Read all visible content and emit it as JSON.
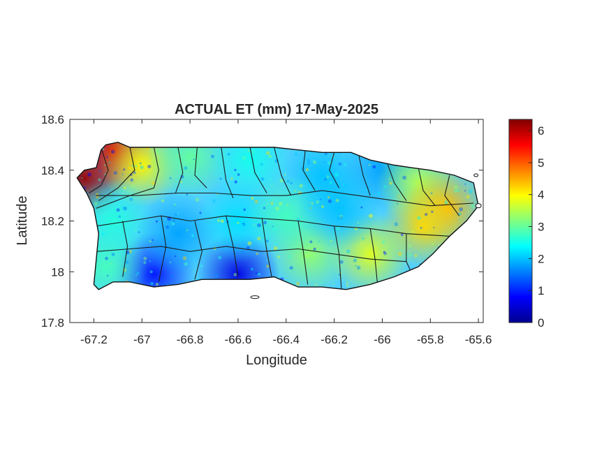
{
  "title": "ACTUAL ET (mm) 17-May-2025",
  "axes": {
    "xlabel": "Longitude",
    "ylabel": "Latitude",
    "xlim": [
      -67.3,
      -65.58
    ],
    "ylim": [
      17.8,
      18.6
    ],
    "x_ticks": [
      -67.2,
      -67.0,
      -66.8,
      -66.6,
      -66.4,
      -66.2,
      -66.0,
      -65.8,
      -65.6
    ],
    "x_tick_labels": [
      "-67.2",
      "-67",
      "-66.8",
      "-66.6",
      "-66.4",
      "-66.2",
      "-66",
      "-65.8",
      "-65.6"
    ],
    "y_ticks": [
      17.8,
      18.0,
      18.2,
      18.4,
      18.6
    ],
    "y_tick_labels": [
      "17.8",
      "18",
      "18.2",
      "18.4",
      "18.6"
    ]
  },
  "colorbar": {
    "colormap": "jet",
    "range": [
      0,
      6.35
    ],
    "ticks": [
      0,
      1,
      2,
      3,
      4,
      5,
      6
    ],
    "tick_labels": [
      "0",
      "1",
      "2",
      "3",
      "4",
      "5",
      "6"
    ],
    "colors": [
      "#00008f",
      "#0000ff",
      "#0080ff",
      "#00ffff",
      "#80ff80",
      "#ffff00",
      "#ff8000",
      "#ff0000",
      "#800000"
    ]
  },
  "chart_data": {
    "type": "heatmap",
    "title": "ACTUAL ET (mm) 17-May-2025",
    "xlabel": "Longitude",
    "ylabel": "Latitude",
    "xlim": [
      -67.3,
      -65.58
    ],
    "ylim": [
      17.8,
      18.6
    ],
    "value_range": [
      0,
      6.35
    ],
    "island_outline": [
      [
        -67.27,
        18.37
      ],
      [
        -67.24,
        18.4
      ],
      [
        -67.19,
        18.41
      ],
      [
        -67.17,
        18.48
      ],
      [
        -67.15,
        18.5
      ],
      [
        -67.1,
        18.51
      ],
      [
        -67.05,
        18.49
      ],
      [
        -66.95,
        18.49
      ],
      [
        -66.85,
        18.49
      ],
      [
        -66.7,
        18.49
      ],
      [
        -66.6,
        18.49
      ],
      [
        -66.45,
        18.49
      ],
      [
        -66.35,
        18.48
      ],
      [
        -66.25,
        18.47
      ],
      [
        -66.13,
        18.47
      ],
      [
        -66.05,
        18.44
      ],
      [
        -65.95,
        18.42
      ],
      [
        -65.88,
        18.41
      ],
      [
        -65.8,
        18.4
      ],
      [
        -65.7,
        18.38
      ],
      [
        -65.62,
        18.35
      ],
      [
        -65.6,
        18.26
      ],
      [
        -65.65,
        18.2
      ],
      [
        -65.72,
        18.14
      ],
      [
        -65.79,
        18.07
      ],
      [
        -65.85,
        18.02
      ],
      [
        -65.95,
        17.98
      ],
      [
        -66.05,
        17.95
      ],
      [
        -66.15,
        17.93
      ],
      [
        -66.25,
        17.94
      ],
      [
        -66.35,
        17.94
      ],
      [
        -66.45,
        17.98
      ],
      [
        -66.55,
        17.97
      ],
      [
        -66.65,
        17.97
      ],
      [
        -66.75,
        17.97
      ],
      [
        -66.85,
        17.95
      ],
      [
        -66.95,
        17.94
      ],
      [
        -67.05,
        17.96
      ],
      [
        -67.12,
        17.96
      ],
      [
        -67.18,
        17.93
      ],
      [
        -67.2,
        17.95
      ],
      [
        -67.19,
        18.05
      ],
      [
        -67.18,
        18.15
      ],
      [
        -67.2,
        18.25
      ],
      [
        -67.23,
        18.31
      ],
      [
        -67.27,
        18.37
      ]
    ],
    "et_hotspots": [
      {
        "lon": -67.24,
        "lat": 18.37,
        "et": 6.2
      },
      {
        "lon": -67.12,
        "lat": 18.48,
        "et": 5.8
      },
      {
        "lon": -67.0,
        "lat": 18.42,
        "et": 4.0
      },
      {
        "lon": -66.8,
        "lat": 18.45,
        "et": 3.0
      },
      {
        "lon": -66.55,
        "lat": 18.44,
        "et": 2.5
      },
      {
        "lon": -66.25,
        "lat": 18.38,
        "et": 2.0
      },
      {
        "lon": -66.0,
        "lat": 18.4,
        "et": 1.8
      },
      {
        "lon": -65.85,
        "lat": 18.35,
        "et": 3.5
      },
      {
        "lon": -65.73,
        "lat": 18.25,
        "et": 4.4
      },
      {
        "lon": -65.83,
        "lat": 18.18,
        "et": 4.2
      },
      {
        "lon": -66.05,
        "lat": 18.07,
        "et": 3.8
      },
      {
        "lon": -66.3,
        "lat": 18.07,
        "et": 3.3
      },
      {
        "lon": -66.6,
        "lat": 17.99,
        "et": 0.6
      },
      {
        "lon": -66.95,
        "lat": 17.99,
        "et": 0.9
      },
      {
        "lon": -67.15,
        "lat": 18.02,
        "et": 2.8
      },
      {
        "lon": -67.12,
        "lat": 18.2,
        "et": 2.6
      },
      {
        "lon": -66.85,
        "lat": 18.15,
        "et": 1.8
      },
      {
        "lon": -66.6,
        "lat": 18.2,
        "et": 2.2
      },
      {
        "lon": -66.4,
        "lat": 18.22,
        "et": 2.8
      },
      {
        "lon": -66.18,
        "lat": 18.25,
        "et": 2.0
      }
    ]
  }
}
